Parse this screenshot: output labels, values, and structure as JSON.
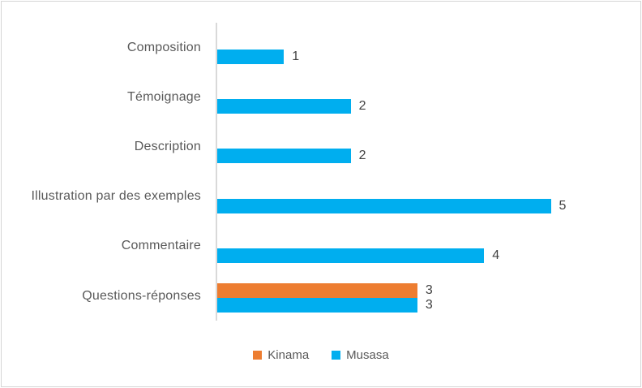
{
  "chart_data": {
    "type": "bar",
    "orientation": "horizontal",
    "title": "",
    "xlabel": "",
    "ylabel": "",
    "categories": [
      "Composition",
      "Témoignage",
      "Description",
      "Illustration par des exemples",
      "Commentaire",
      "Questions-réponses"
    ],
    "series": [
      {
        "name": "Kinama",
        "color": "#ED7D31",
        "values": [
          null,
          null,
          null,
          null,
          null,
          3
        ]
      },
      {
        "name": "Musasa",
        "color": "#00AEEF",
        "values": [
          1,
          2,
          2,
          5,
          4,
          3
        ]
      }
    ],
    "xlim": [
      0,
      6
    ],
    "grid": false,
    "data_labels": true,
    "legend_position": "bottom",
    "axis_color": "#D9D9D9",
    "category_label_color": "#595959",
    "value_label_color": "#404040",
    "background_color": "#FFFFFF",
    "border_color": "#D6D6D6"
  },
  "legend": {
    "items": [
      {
        "label": "Kinama",
        "color": "#ED7D31"
      },
      {
        "label": "Musasa",
        "color": "#00AEEF"
      }
    ]
  }
}
